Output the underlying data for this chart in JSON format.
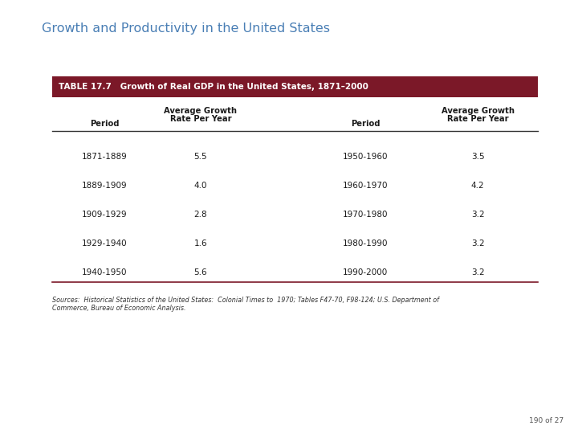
{
  "page_title": "Growth and Productivity in the United States",
  "table_title": "TABLE 17.7   Growth of Real GDP in the United States, 1871–2000",
  "header_bg_color": "#7B1828",
  "header_text_color": "#FFFFFF",
  "col_headers_line1": [
    "Period",
    "Average Growth",
    "Period",
    "Average Growth"
  ],
  "col_headers_line2": [
    "",
    "Rate Per Year",
    "",
    "Rate Per Year"
  ],
  "rows": [
    [
      "1871-1889",
      "5.5",
      "1950-1960",
      "3.5"
    ],
    [
      "1889-1909",
      "4.0",
      "1960-1970",
      "4.2"
    ],
    [
      "1909-1929",
      "2.8",
      "1970-1980",
      "3.2"
    ],
    [
      "1929-1940",
      "1.6",
      "1980-1990",
      "3.2"
    ],
    [
      "1940-1950",
      "5.6",
      "1990-2000",
      "3.2"
    ]
  ],
  "source_text": "Sources:  Historical Statistics of the United States:  Colonial Times to  1970; Tables F47-70, F98-124; U.S. Department of\nCommerce, Bureau of Economic Analysis.",
  "page_number": "190 of 27",
  "title_color": "#4A7FB5",
  "text_color": "#1A1A1A",
  "table_border_color": "#7B1828",
  "sep_line_color": "#333333",
  "title_fontsize": 11.5,
  "table_title_fontsize": 7.5,
  "col_header_fontsize": 7.2,
  "data_fontsize": 7.5,
  "source_fontsize": 5.8,
  "page_num_fontsize": 6.5
}
